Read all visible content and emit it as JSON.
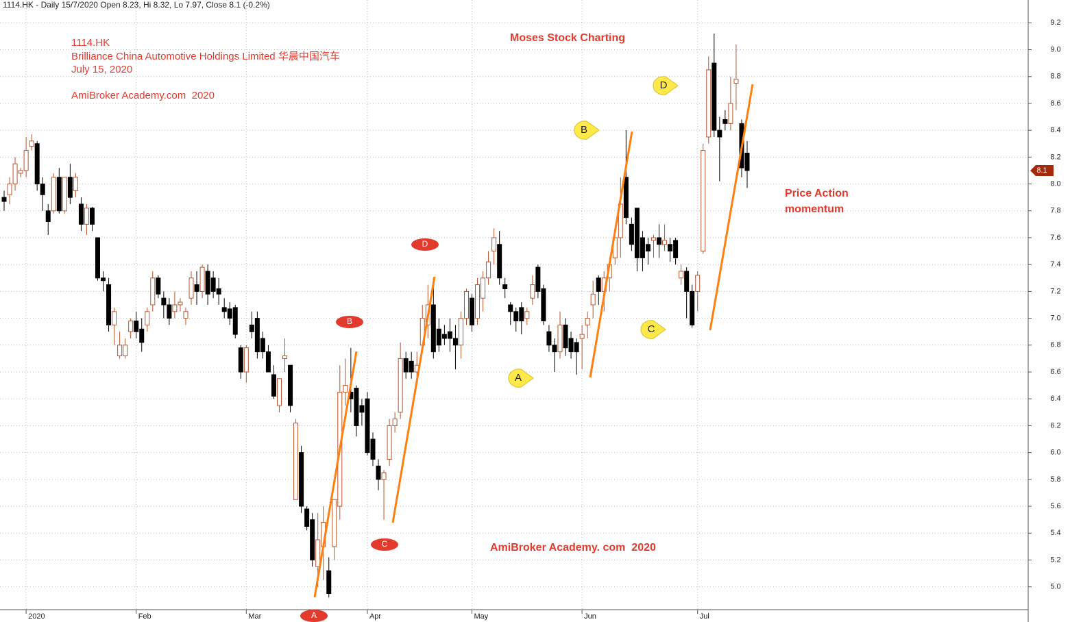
{
  "chart_data": {
    "type": "candlestick",
    "title": "1114.HK - Daily 15/7/2020 Open 8.23, Hi 8.32, Lo 7.97, Close 8.1 (-0.2%)",
    "categories": [
      null,
      null,
      null,
      null,
      "2020",
      null,
      null,
      null,
      null,
      null,
      null,
      null,
      null,
      null,
      null,
      null,
      null,
      null,
      null,
      null,
      null,
      null,
      null,
      null,
      "Feb",
      null,
      null,
      null,
      null,
      null,
      null,
      null,
      null,
      null,
      null,
      null,
      null,
      null,
      null,
      null,
      null,
      null,
      null,
      null,
      "Mar",
      null,
      null,
      null,
      null,
      null,
      null,
      null,
      null,
      null,
      null,
      null,
      null,
      null,
      null,
      null,
      null,
      null,
      null,
      null,
      null,
      null,
      "Apr",
      null,
      null,
      null,
      null,
      null,
      null,
      null,
      null,
      null,
      null,
      null,
      null,
      null,
      null,
      null,
      null,
      null,
      null,
      "May",
      null,
      null,
      null,
      null,
      null,
      null,
      null,
      null,
      null,
      null,
      null,
      null,
      null,
      null,
      null,
      null,
      null,
      null,
      null,
      "Jun",
      null,
      null,
      null,
      null,
      null,
      null,
      null,
      null,
      null,
      null,
      null,
      null,
      null,
      null,
      null,
      null,
      null,
      null,
      null,
      null,
      "Jul",
      null,
      null,
      null,
      null,
      null,
      null,
      null,
      null,
      null
    ],
    "open": [
      7.9,
      7.92,
      8.0,
      8.08,
      8.1,
      8.28,
      8.3,
      8.0,
      7.8,
      7.8,
      8.05,
      7.8,
      8.05,
      7.95,
      7.85,
      7.7,
      7.82,
      7.6,
      7.3,
      7.25,
      6.95,
      6.72,
      6.72,
      6.9,
      6.98,
      6.92,
      6.95,
      7.1,
      7.3,
      7.15,
      7.1,
      7.05,
      7.1,
      7.0,
      7.15,
      7.25,
      7.2,
      7.35,
      7.3,
      7.22,
      7.08,
      7.07,
      7.08,
      6.78,
      6.6,
      6.95,
      7.0,
      6.85,
      6.75,
      6.58,
      6.35,
      6.7,
      6.65,
      5.65,
      6.0,
      5.58,
      5.5,
      5.15,
      5.3,
      5.12,
      5.3,
      5.6,
      6.45,
      6.45,
      6.48,
      6.35,
      6.4,
      6.1,
      5.9,
      5.8,
      5.95,
      6.2,
      6.3,
      6.7,
      6.68,
      6.6,
      6.8,
      6.95,
      7.1,
      6.92,
      6.88,
      6.9,
      6.85,
      6.8,
      7.0,
      7.15,
      7.0,
      7.15,
      7.3,
      7.5,
      7.55,
      7.25,
      7.1,
      7.05,
      7.08,
      7.0,
      7.15,
      7.38,
      7.22,
      6.9,
      6.8,
      6.75,
      6.95,
      6.85,
      6.82,
      6.85,
      6.95,
      7.1,
      7.3,
      7.2,
      7.3,
      7.45,
      7.6,
      8.05,
      7.7,
      7.82,
      7.6,
      7.55,
      7.58,
      7.6,
      7.55,
      7.55,
      7.58,
      7.3,
      7.35,
      7.2,
      7.2,
      7.5,
      8.35,
      8.9,
      8.4,
      8.48,
      8.45,
      8.75,
      8.45,
      8.23
    ],
    "high": [
      7.95,
      8.05,
      8.2,
      8.12,
      8.35,
      8.37,
      8.32,
      8.05,
      7.85,
      8.08,
      8.12,
      8.05,
      8.15,
      8.08,
      7.9,
      7.85,
      7.83,
      7.6,
      7.35,
      7.3,
      7.08,
      6.9,
      6.85,
      7.0,
      7.05,
      7.0,
      7.08,
      7.35,
      7.32,
      7.2,
      7.15,
      7.2,
      7.15,
      7.08,
      7.35,
      7.35,
      7.4,
      7.4,
      7.35,
      7.3,
      7.15,
      7.12,
      7.1,
      6.8,
      6.8,
      7.05,
      7.05,
      6.9,
      6.8,
      6.65,
      6.55,
      6.85,
      6.65,
      6.25,
      6.05,
      5.6,
      5.55,
      5.55,
      5.6,
      5.22,
      5.65,
      6.65,
      6.7,
      6.78,
      6.5,
      6.4,
      6.45,
      6.15,
      5.95,
      5.87,
      6.25,
      6.3,
      6.82,
      6.75,
      6.75,
      6.75,
      7.1,
      7.25,
      7.3,
      7.0,
      6.95,
      7.0,
      6.95,
      7.05,
      7.22,
      7.18,
      7.3,
      7.35,
      7.5,
      7.67,
      7.65,
      7.3,
      7.12,
      7.08,
      7.12,
      7.08,
      7.32,
      7.4,
      7.25,
      6.95,
      6.85,
      7.05,
      7.0,
      6.9,
      6.85,
      6.95,
      7.05,
      7.28,
      7.32,
      7.35,
      7.45,
      7.6,
      8.05,
      8.4,
      7.75,
      7.82,
      7.65,
      7.6,
      7.62,
      7.7,
      7.7,
      7.6,
      7.6,
      7.4,
      7.38,
      7.25,
      7.35,
      8.3,
      8.95,
      9.12,
      8.5,
      8.55,
      8.8,
      9.04,
      8.48,
      8.32
    ],
    "low": [
      7.8,
      7.85,
      7.95,
      8.05,
      8.05,
      8.25,
      7.95,
      7.8,
      7.62,
      7.78,
      7.78,
      7.78,
      7.85,
      7.9,
      7.65,
      7.62,
      7.65,
      7.28,
      7.2,
      6.9,
      6.8,
      6.7,
      6.7,
      6.85,
      6.85,
      6.75,
      6.9,
      7.05,
      7.15,
      7.0,
      6.95,
      7.0,
      7.05,
      6.95,
      7.1,
      7.1,
      7.15,
      7.1,
      7.15,
      7.1,
      7.0,
      6.95,
      6.85,
      6.55,
      6.52,
      6.85,
      6.7,
      6.7,
      6.6,
      6.4,
      6.3,
      6.6,
      6.3,
      5.65,
      5.55,
      5.42,
      5.15,
      5.0,
      5.05,
      4.92,
      5.2,
      5.5,
      6.35,
      6.3,
      6.12,
      6.2,
      5.98,
      5.9,
      5.72,
      5.5,
      5.9,
      6.15,
      6.25,
      6.55,
      6.55,
      6.55,
      6.75,
      6.85,
      6.7,
      6.75,
      6.8,
      6.75,
      6.62,
      6.7,
      6.95,
      6.9,
      6.95,
      7.05,
      7.25,
      7.4,
      7.25,
      7.15,
      6.95,
      6.9,
      6.88,
      6.95,
      7.1,
      7.15,
      6.95,
      6.75,
      6.6,
      6.7,
      6.72,
      6.7,
      6.58,
      6.62,
      6.85,
      7.0,
      7.1,
      7.05,
      7.2,
      7.4,
      7.45,
      7.7,
      7.5,
      7.35,
      7.35,
      7.4,
      7.45,
      7.45,
      7.5,
      7.42,
      7.4,
      7.25,
      7.0,
      6.93,
      7.05,
      7.48,
      8.3,
      8.35,
      8.02,
      8.4,
      8.4,
      8.55,
      8.05,
      7.97
    ],
    "close": [
      7.87,
      8.0,
      8.15,
      8.1,
      8.25,
      8.32,
      8.0,
      7.92,
      7.72,
      8.05,
      7.8,
      8.05,
      7.9,
      8.05,
      7.7,
      7.82,
      7.7,
      7.3,
      7.28,
      6.95,
      7.05,
      6.8,
      6.8,
      6.98,
      6.9,
      6.82,
      7.05,
      7.3,
      7.18,
      7.1,
      7.0,
      7.1,
      7.12,
      7.05,
      7.3,
      7.2,
      7.38,
      7.18,
      7.2,
      7.18,
      7.05,
      7.0,
      6.88,
      6.6,
      6.78,
      6.9,
      6.75,
      6.75,
      6.6,
      6.42,
      6.55,
      6.72,
      6.35,
      6.22,
      5.6,
      5.45,
      5.2,
      5.35,
      5.48,
      4.95,
      5.65,
      6.45,
      6.5,
      6.4,
      6.2,
      6.3,
      6.0,
      5.95,
      5.8,
      5.85,
      6.2,
      6.25,
      6.7,
      6.6,
      6.6,
      6.65,
      7.0,
      7.1,
      6.75,
      6.8,
      6.85,
      6.85,
      6.8,
      7.0,
      7.2,
      6.95,
      7.25,
      7.3,
      7.42,
      7.6,
      7.3,
      7.22,
      7.05,
      6.98,
      6.98,
      7.05,
      7.25,
      7.2,
      6.98,
      6.8,
      6.75,
      6.95,
      6.78,
      6.75,
      6.75,
      6.88,
      7.0,
      7.18,
      7.2,
      7.3,
      7.4,
      7.6,
      7.85,
      7.75,
      7.55,
      7.45,
      7.45,
      7.5,
      7.6,
      7.55,
      7.58,
      7.5,
      7.45,
      7.35,
      7.2,
      6.95,
      7.32,
      8.25,
      8.85,
      8.4,
      8.35,
      8.45,
      8.6,
      8.78,
      8.12,
      8.1
    ],
    "up_color": "#b5532a",
    "down_color": "#000000",
    "ylim": [
      4.83,
      9.37
    ],
    "yticks": [
      {
        "value": 5.0,
        "label": "5.0"
      },
      5.2,
      5.4,
      5.6,
      5.8,
      {
        "value": 6.0,
        "label": "6.0"
      },
      6.2,
      6.4,
      6.6,
      6.8,
      {
        "value": 7.0,
        "label": "7.0"
      },
      7.2,
      7.4,
      7.6,
      7.8,
      {
        "value": 8.0,
        "label": "8.0"
      },
      8.2,
      8.4,
      8.6,
      8.8,
      {
        "value": 9.0,
        "label": "9.0"
      },
      9.2
    ],
    "grid": true,
    "last_price": 8.1,
    "last_price_color": "#a52a0a"
  },
  "annotations": {
    "ticker": "1114.HK",
    "company": "Brilliance China Automotive Holdings Limited 华晨中国汽车",
    "date": "July 15, 2020",
    "watermark_top": "AmiBroker Academy.com  2020",
    "heading": "Moses Stock Charting",
    "note_line1": "Price Action",
    "note_line2": "momentum",
    "watermark_bottom": "AmiBroker Academy. com  2020",
    "red_markers": [
      "A",
      "B",
      "C",
      "D"
    ],
    "yellow_callouts": [
      "A",
      "B",
      "C",
      "D"
    ]
  }
}
